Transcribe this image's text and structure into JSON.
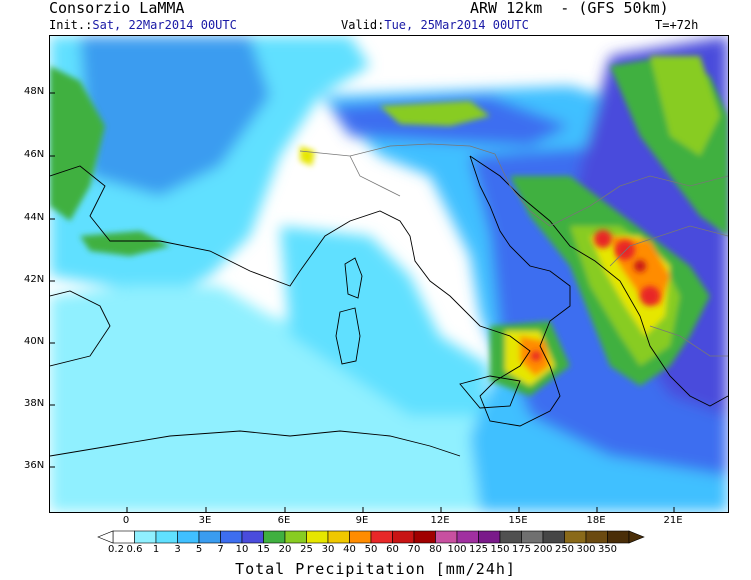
{
  "header": {
    "org": "Consorzio LaMMA",
    "model": "ARW 12km  - (GFS 50km)",
    "init_label": "Init.:",
    "init_value": "Sat, 22Mar2014 00UTC",
    "valid_label": "Valid:",
    "valid_value": "Tue, 25Mar2014 00UTC",
    "step": "T=+72h"
  },
  "map": {
    "lat_labels": [
      "48N",
      "46N",
      "44N",
      "42N",
      "40N",
      "38N",
      "36N"
    ],
    "lon_labels": [
      "0",
      "3E",
      "6E",
      "9E",
      "12E",
      "15E",
      "18E",
      "21E"
    ]
  },
  "colorbar": {
    "title": "Total Precipitation [mm/24h]",
    "labels": [
      "0.2",
      "0.6",
      "1",
      "3",
      "5",
      "7",
      "10",
      "15",
      "20",
      "25",
      "30",
      "40",
      "50",
      "60",
      "70",
      "80",
      "100",
      "125",
      "150",
      "175",
      "200",
      "250",
      "300",
      "350"
    ],
    "colors": [
      "#ffffff",
      "#90f0ff",
      "#60e0ff",
      "#40c0ff",
      "#3a9cf0",
      "#3d6ef0",
      "#4a4cdc",
      "#40b040",
      "#88cc22",
      "#e6e600",
      "#f0c800",
      "#ff8c00",
      "#e82828",
      "#c81414",
      "#a00000",
      "#c850a0",
      "#a030a0",
      "#7a1a8a",
      "#505050",
      "#707070",
      "#464646",
      "#8a6a1a",
      "#6b4a10",
      "#4a2e08"
    ]
  }
}
